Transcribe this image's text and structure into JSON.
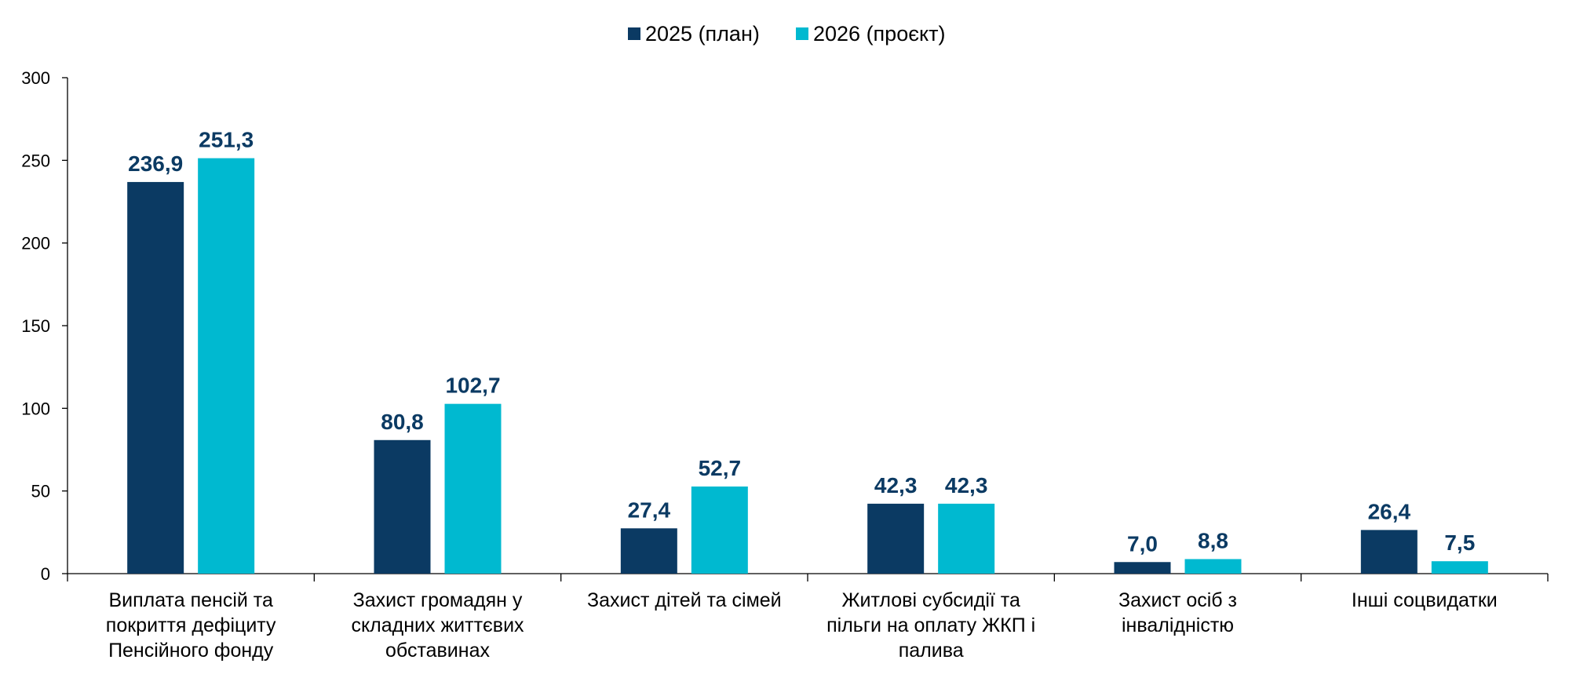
{
  "chart_data": {
    "type": "bar",
    "title": "",
    "xlabel": "",
    "ylabel": "",
    "ylim": [
      0,
      300
    ],
    "yticks": [
      0,
      50,
      100,
      150,
      200,
      250,
      300
    ],
    "grid": false,
    "legend_position": "top-center",
    "categories": [
      [
        "Виплата пенсій та",
        "покриття дефіциту",
        "Пенсійного фонду"
      ],
      [
        "Захист громадян у",
        "складних життєвих",
        "обставинах"
      ],
      [
        "Захист дітей та сімей"
      ],
      [
        "Житлові субсидії та",
        "пільги на оплату ЖКП і",
        "палива"
      ],
      [
        "Захист осіб з",
        "інвалідністю"
      ],
      [
        "Інші соцвидатки"
      ]
    ],
    "series": [
      {
        "name": "2025 (план)",
        "color": "#0b3a63",
        "values": [
          236.9,
          80.8,
          27.4,
          42.3,
          7.0,
          26.4
        ],
        "labels": [
          "236,9",
          "80,8",
          "27,4",
          "42,3",
          "7,0",
          "26,4"
        ]
      },
      {
        "name": "2026 (проєкт)",
        "color": "#00b9d0",
        "values": [
          251.3,
          102.7,
          52.7,
          42.3,
          8.8,
          7.5
        ],
        "labels": [
          "251,3",
          "102,7",
          "52,7",
          "42,3",
          "8,8",
          "7,5"
        ]
      }
    ],
    "label_color": "#0b3a63"
  }
}
